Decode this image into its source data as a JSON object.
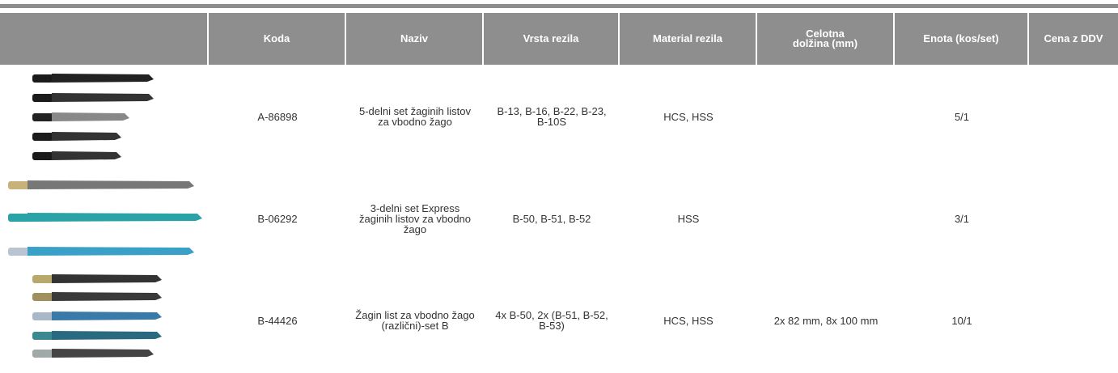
{
  "table": {
    "columns": [
      "Koda",
      "Naziv",
      "Vrsta rezila",
      "Material rezila",
      "Celotna dolžina (mm)",
      "Enota (kos/set)",
      "Cena z DDV"
    ],
    "rows": [
      {
        "koda": "A-86898",
        "naziv": "5-delni set žaginih listov za vbodno žago",
        "vrsta": "B-13, B-16, B-22, B-23, B-10S",
        "material": "HCS, HSS",
        "enota": "5/1"
      },
      {
        "koda": "B-06292",
        "naziv": "3-delni set Express žaginih listov za vbodno žago",
        "vrsta": "B-50, B-51, B-52",
        "material": "HSS",
        "enota": "3/1"
      },
      {
        "koda": "B-44426",
        "naziv": "Žagin list za vbodno žago (različni)-set B",
        "vrsta": "4x B-50, 2x (B-51, B-52, B-53)",
        "material": "HCS, HSS",
        "dolzina": "2x 82 mm, 8x 100 mm",
        "enota": "10/1"
      }
    ]
  }
}
